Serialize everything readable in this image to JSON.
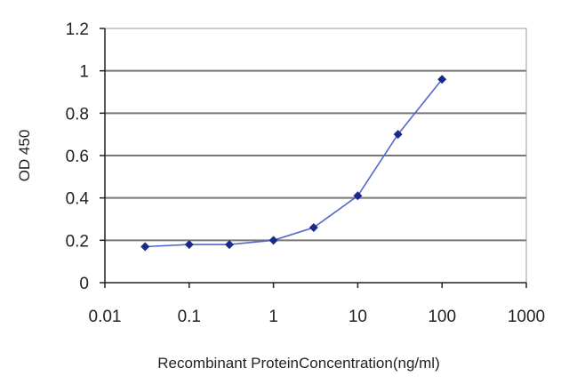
{
  "chart_data": {
    "type": "line",
    "title": "",
    "xlabel": "Recombinant ProteinConcentration(ng/ml)",
    "ylabel": "OD 450",
    "x_scale": "log",
    "xlim": [
      0.01,
      1000
    ],
    "ylim": [
      0,
      1.2
    ],
    "x_ticks": [
      0.01,
      0.1,
      1,
      10,
      100,
      1000
    ],
    "x_tick_labels": [
      "0.01",
      "0.1",
      "1",
      "10",
      "100",
      "1000"
    ],
    "y_ticks": [
      0,
      0.2,
      0.4,
      0.6,
      0.8,
      1,
      1.2
    ],
    "y_tick_labels": [
      "0",
      "0.2",
      "0.4",
      "0.6",
      "0.8",
      "1",
      "1.2"
    ],
    "grid": "horizontal",
    "legend": "none",
    "series": [
      {
        "x": [
          0.03,
          0.1,
          0.3,
          1,
          3,
          10,
          30,
          100
        ],
        "y": [
          0.17,
          0.18,
          0.18,
          0.2,
          0.26,
          0.41,
          0.7,
          0.96
        ],
        "color": "#3344a0",
        "marker": "diamond"
      }
    ],
    "colors": {
      "series_line": "#5566cc",
      "marker": "#1a2a8c",
      "grid": "#777777",
      "plot_border": "#999999"
    }
  }
}
